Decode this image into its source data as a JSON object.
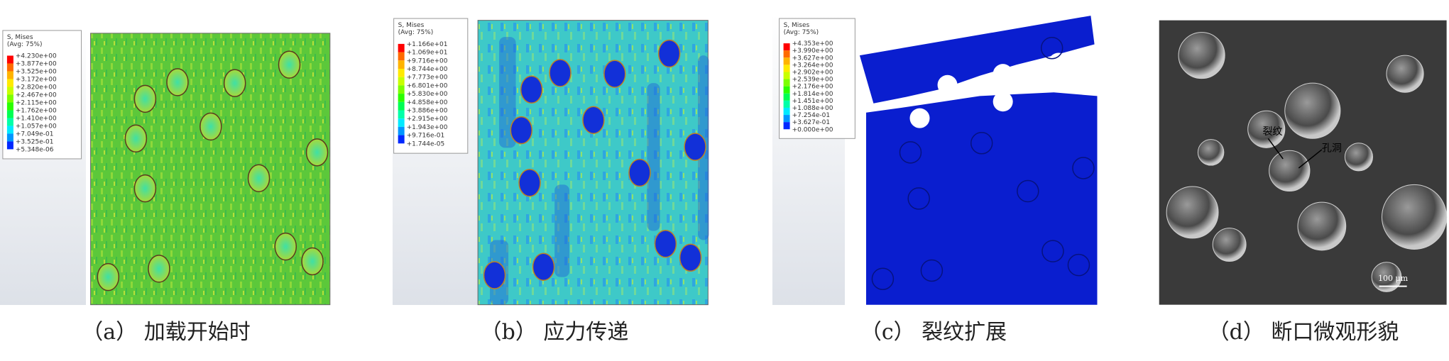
{
  "panels": [
    {
      "caption": "（a） 加载开始时",
      "legend": {
        "title": "S, Mises",
        "subtitle": "(Avg: 75%)",
        "values": [
          "+4.230e+00",
          "+3.877e+00",
          "+3.525e+00",
          "+3.172e+00",
          "+2.820e+00",
          "+2.467e+00",
          "+2.115e+00",
          "+1.762e+00",
          "+1.410e+00",
          "+1.057e+00",
          "+7.049e-01",
          "+3.525e-01",
          "+5.348e-06"
        ]
      }
    },
    {
      "caption": "（b） 应力传递",
      "legend": {
        "title": "S, Mises",
        "subtitle": "(Avg: 75%)",
        "values": [
          "+1.166e+01",
          "+1.069e+01",
          "+9.716e+00",
          "+8.744e+00",
          "+7.773e+00",
          "+6.801e+00",
          "+5.830e+00",
          "+4.858e+00",
          "+3.886e+00",
          "+2.915e+00",
          "+1.943e+00",
          "+9.716e-01",
          "+1.744e-05"
        ]
      }
    },
    {
      "caption": "（c） 裂纹扩展",
      "legend": {
        "title": "S, Mises",
        "subtitle": "(Avg: 75%)",
        "values": [
          "+4.353e+00",
          "+3.990e+00",
          "+3.627e+00",
          "+3.264e+00",
          "+2.902e+00",
          "+2.539e+00",
          "+2.176e+00",
          "+1.814e+00",
          "+1.451e+00",
          "+1.088e+00",
          "+7.254e-01",
          "+3.627e-01",
          "+0.000e+00"
        ]
      }
    },
    {
      "caption": "（d） 断口微观形貌",
      "labels": [
        "裂纹",
        "孔洞"
      ],
      "scale_bar": "100 μm"
    }
  ]
}
